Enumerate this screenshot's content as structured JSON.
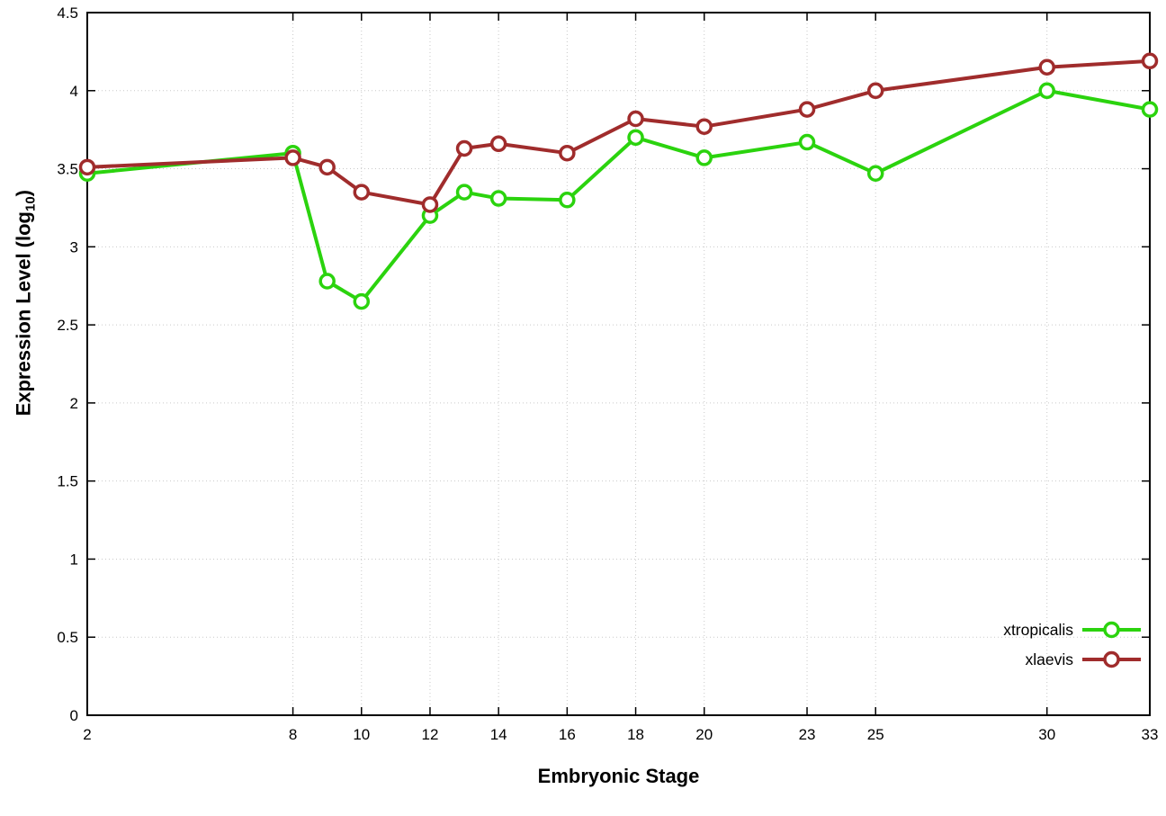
{
  "chart_data": {
    "type": "line",
    "title": "",
    "xlabel": "Embryonic Stage",
    "ylabel": {
      "pre": "Expression Level (log",
      "sub": "10",
      "post": ")"
    },
    "x": [
      2,
      8,
      9,
      10,
      12,
      13,
      14,
      16,
      18,
      20,
      23,
      25,
      30,
      33
    ],
    "xtick_labels": [
      2,
      8,
      10,
      12,
      14,
      16,
      18,
      20,
      23,
      25,
      30,
      33
    ],
    "xlim": [
      2,
      33
    ],
    "ylim": [
      0,
      4.5
    ],
    "yticks": [
      0,
      0.5,
      1,
      1.5,
      2,
      2.5,
      3,
      3.5,
      4,
      4.5
    ],
    "grid": true,
    "legend": {
      "position": "bottom-right-inside",
      "entries": [
        "xtropicalis",
        "xlaevis"
      ]
    },
    "series": [
      {
        "name": "xtropicalis",
        "color": "#2bd30e",
        "values": [
          3.47,
          3.6,
          2.78,
          2.65,
          3.2,
          3.35,
          3.31,
          3.3,
          3.7,
          3.57,
          3.67,
          3.47,
          4.0,
          3.88
        ]
      },
      {
        "name": "xlaevis",
        "color": "#a02c2c",
        "values": [
          3.51,
          3.57,
          3.51,
          3.35,
          3.27,
          3.63,
          3.66,
          3.6,
          3.82,
          3.77,
          3.88,
          4.0,
          4.15,
          4.19
        ]
      }
    ]
  },
  "colors": {
    "grid": "#c9c9c9",
    "axis": "#000000",
    "background": "#ffffff"
  }
}
